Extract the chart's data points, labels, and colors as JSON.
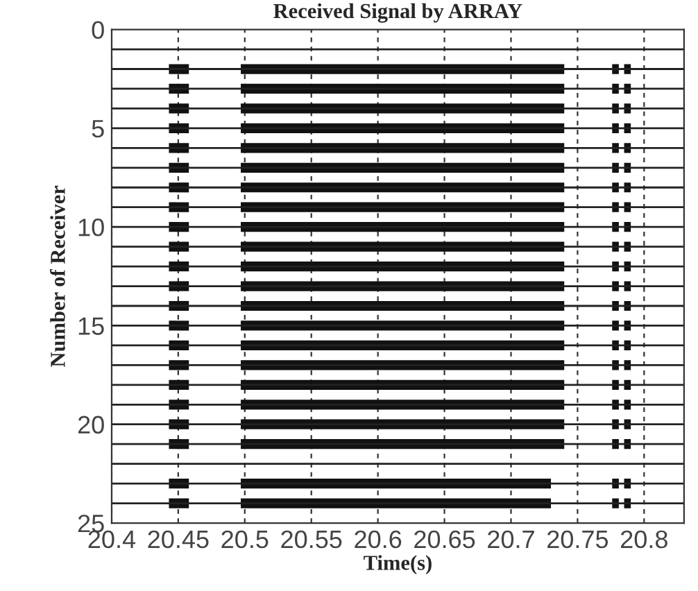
{
  "chart_data": {
    "type": "bar",
    "orientation": "horizontal",
    "title": "Received Signal by ARRAY",
    "xlabel": "Time(s)",
    "ylabel": "Number of Receiver",
    "x": [
      2,
      3,
      4,
      5,
      6,
      7,
      8,
      9,
      10,
      11,
      12,
      13,
      14,
      15,
      16,
      17,
      18,
      19,
      20,
      21,
      22,
      23,
      24
    ],
    "series": [
      {
        "color": "#111111",
        "base": [
          20.443,
          20.443,
          20.443,
          20.443,
          20.443,
          20.443,
          20.443,
          20.443,
          20.443,
          20.443,
          20.443,
          20.443,
          20.443,
          20.443,
          20.443,
          20.443,
          20.443,
          20.443,
          20.443,
          20.443,
          null,
          20.443,
          20.443
        ],
        "values": [
          0.015,
          0.015,
          0.015,
          0.015,
          0.015,
          0.015,
          0.015,
          0.015,
          0.015,
          0.015,
          0.015,
          0.015,
          0.015,
          0.015,
          0.015,
          0.015,
          0.015,
          0.015,
          0.015,
          0.015,
          null,
          0.015,
          0.015
        ]
      },
      {
        "color": "#111111",
        "base": [
          20.497,
          20.497,
          20.497,
          20.497,
          20.497,
          20.497,
          20.497,
          20.497,
          20.497,
          20.497,
          20.497,
          20.497,
          20.497,
          20.497,
          20.497,
          20.497,
          20.497,
          20.497,
          20.497,
          20.497,
          null,
          20.497,
          20.497
        ],
        "values": [
          0.243,
          0.243,
          0.243,
          0.243,
          0.243,
          0.243,
          0.243,
          0.243,
          0.243,
          0.243,
          0.243,
          0.243,
          0.243,
          0.243,
          0.243,
          0.243,
          0.243,
          0.243,
          0.243,
          0.243,
          null,
          0.233,
          0.233
        ]
      },
      {
        "color": "#111111",
        "base": [
          20.776,
          20.776,
          20.776,
          20.776,
          20.776,
          20.776,
          20.776,
          20.776,
          20.776,
          20.776,
          20.776,
          20.776,
          20.776,
          20.776,
          20.776,
          20.776,
          20.776,
          20.776,
          20.776,
          20.776,
          null,
          20.776,
          20.776
        ],
        "values": [
          0.005,
          0.005,
          0.005,
          0.005,
          0.005,
          0.005,
          0.005,
          0.005,
          0.005,
          0.005,
          0.005,
          0.005,
          0.005,
          0.005,
          0.005,
          0.005,
          0.005,
          0.005,
          0.005,
          0.005,
          null,
          0.005,
          0.005
        ]
      },
      {
        "color": "#111111",
        "base": [
          20.785,
          20.785,
          20.785,
          20.785,
          20.785,
          20.785,
          20.785,
          20.785,
          20.785,
          20.785,
          20.785,
          20.785,
          20.785,
          20.785,
          20.785,
          20.785,
          20.785,
          20.785,
          20.785,
          20.785,
          null,
          20.785,
          20.785
        ],
        "values": [
          0.005,
          0.005,
          0.005,
          0.005,
          0.005,
          0.005,
          0.005,
          0.005,
          0.005,
          0.005,
          0.005,
          0.005,
          0.005,
          0.005,
          0.005,
          0.005,
          0.005,
          0.005,
          0.005,
          0.005,
          null,
          0.005,
          0.005
        ]
      }
    ],
    "ref_lines": [
      {
        "axis": "y",
        "value": 1
      },
      {
        "axis": "y",
        "value": 2
      },
      {
        "axis": "y",
        "value": 3
      },
      {
        "axis": "y",
        "value": 4
      },
      {
        "axis": "y",
        "value": 5
      },
      {
        "axis": "y",
        "value": 6
      },
      {
        "axis": "y",
        "value": 7
      },
      {
        "axis": "y",
        "value": 8
      },
      {
        "axis": "y",
        "value": 9
      },
      {
        "axis": "y",
        "value": 10
      },
      {
        "axis": "y",
        "value": 11
      },
      {
        "axis": "y",
        "value": 12
      },
      {
        "axis": "y",
        "value": 13
      },
      {
        "axis": "y",
        "value": 14
      },
      {
        "axis": "y",
        "value": 15
      },
      {
        "axis": "y",
        "value": 16
      },
      {
        "axis": "y",
        "value": 17
      },
      {
        "axis": "y",
        "value": 18
      },
      {
        "axis": "y",
        "value": 19
      },
      {
        "axis": "y",
        "value": 20
      },
      {
        "axis": "y",
        "value": 21
      },
      {
        "axis": "y",
        "value": 22
      },
      {
        "axis": "y",
        "value": 23
      },
      {
        "axis": "y",
        "value": 24
      }
    ],
    "xlim": [
      20.4,
      20.83
    ],
    "xticks": [
      20.4,
      20.45,
      20.5,
      20.55,
      20.6,
      20.65,
      20.7,
      20.75,
      20.8
    ],
    "ylim": [
      25,
      0
    ],
    "yticks": [
      0,
      5,
      10,
      15,
      20,
      25
    ],
    "grid": "x"
  }
}
